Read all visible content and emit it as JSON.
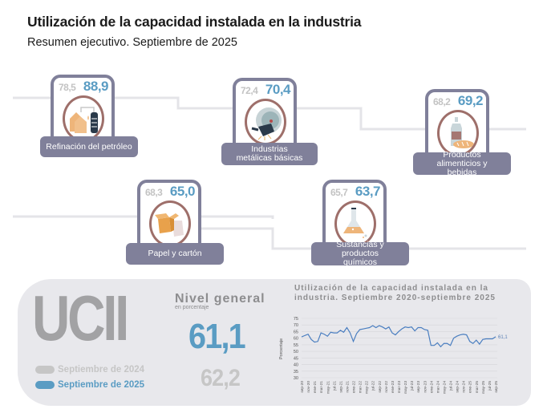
{
  "header": {
    "title": "Utilización de la capacidad instalada en la industria",
    "subtitle": "Resumen ejecutivo. Septiembre de 2025"
  },
  "sectors": [
    {
      "name": "Refinación del petróleo",
      "prev": "78,5",
      "curr": "88,9",
      "icon": "oil-refinery-icon"
    },
    {
      "name": "Industrias metálicas básicas",
      "prev": "72,4",
      "curr": "70,4",
      "icon": "metal-grinder-icon"
    },
    {
      "name": "Productos alimenticios y bebidas",
      "prev": "68,2",
      "curr": "69,2",
      "icon": "bottle-bread-icon"
    },
    {
      "name": "Papel y cartón",
      "prev": "68,3",
      "curr": "65,0",
      "icon": "cardboard-box-icon"
    },
    {
      "name": "Sustancias y productos químicos",
      "prev": "65,7",
      "curr": "63,7",
      "icon": "flask-icon"
    }
  ],
  "summary": {
    "acronym": "UCII",
    "legend": [
      {
        "label": "Septiembre de 2024",
        "color": "#c6c6c6"
      },
      {
        "label": "Septiembre de 2025",
        "color": "#5a9cc3"
      }
    ],
    "general_title": "Nivel general",
    "general_subtitle": "en porcentaje",
    "general_curr": "61,1",
    "general_prev": "62,2"
  },
  "colors": {
    "accent_blue": "#5a9cc3",
    "prev_gray": "#c3c3c3",
    "card_border": "#80809a",
    "icon_ring": "#9e6f6a",
    "panel_bg": "#e8e8ec"
  },
  "chart_data": {
    "type": "line",
    "title": "Utilización de la capacidad instalada en la industria. Septiembre 2020-septiembre 2025",
    "xlabel": "",
    "ylabel": "Porcentaje",
    "ylim": [
      30,
      75
    ],
    "yticks": [
      "75",
      "70",
      "65",
      "60",
      "55",
      "50",
      "45",
      "40",
      "35",
      "30"
    ],
    "xticks": [
      "sep-20",
      "nov-20",
      "ene-21",
      "mar-21",
      "may-21",
      "jul-21",
      "sep-21",
      "nov-21",
      "ene-22",
      "mar-22",
      "may-22",
      "jul-22",
      "sep-22",
      "nov-22",
      "ene-23",
      "mar-23",
      "may-23",
      "jul-23",
      "sep-23",
      "nov-23",
      "ene-24",
      "mar-24",
      "may-24",
      "jul-24",
      "sep-24",
      "nov-24",
      "ene-25",
      "mar-25",
      "may-25",
      "jul-25",
      "sep-25"
    ],
    "grid": true,
    "end_label": "61,1",
    "series": [
      {
        "name": "UCII",
        "color": "#4a7ec0",
        "values": [
          61.0,
          62.0,
          63.0,
          59.0,
          57.0,
          57.5,
          64.0,
          63.0,
          61.5,
          64.5,
          64.0,
          64.0,
          66.0,
          64.5,
          68.0,
          64.0,
          57.5,
          63.5,
          66.5,
          67.0,
          67.5,
          68.0,
          69.5,
          68.0,
          69.5,
          68.5,
          67.0,
          68.5,
          64.0,
          62.5,
          65.0,
          67.0,
          68.5,
          68.0,
          68.5,
          65.5,
          68.0,
          68.0,
          66.5,
          66.0,
          54.5,
          54.5,
          56.5,
          53.5,
          56.0,
          56.0,
          54.5,
          60.0,
          61.5,
          62.5,
          63.0,
          62.5,
          57.5,
          56.0,
          58.5,
          55.5,
          59.0,
          59.5,
          59.5,
          59.5,
          61.1
        ]
      }
    ]
  }
}
